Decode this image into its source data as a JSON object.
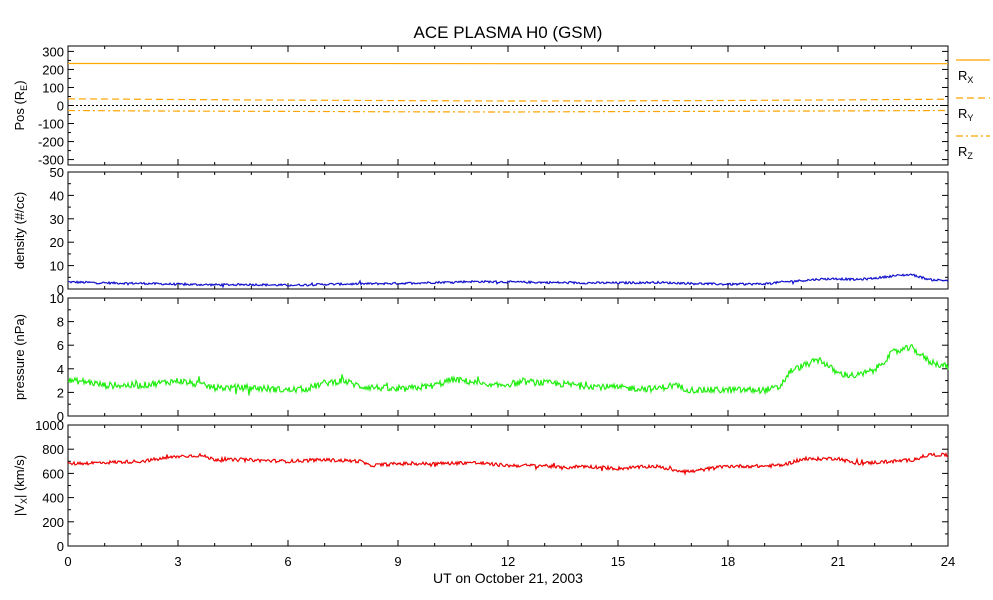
{
  "title": "ACE PLASMA H0 (GSM)",
  "xlabel": "UT on October 21, 2003",
  "x_ticks": [
    "0",
    "3",
    "6",
    "9",
    "12",
    "15",
    "18",
    "21",
    "24"
  ],
  "chart_data": [
    {
      "type": "line",
      "panel": "position",
      "ylabel": "Pos (R",
      "ylabel_sub": "E",
      "ylabel_end": ")",
      "ylim": [
        -330,
        330
      ],
      "yticks": [
        "300",
        "200",
        "100",
        "0",
        "-100",
        "-200",
        "-300"
      ],
      "ytick_values": [
        300,
        200,
        100,
        0,
        -100,
        -200,
        -300
      ],
      "zero_line": true,
      "legend_position": "right",
      "legend": [
        {
          "label": "R",
          "sub": "X",
          "style": "solid"
        },
        {
          "label": "R",
          "sub": "Y",
          "style": "dashed"
        },
        {
          "label": "R",
          "sub": "Z",
          "style": "dashdot"
        }
      ],
      "series": [
        {
          "name": "R_X",
          "color": "#ffa500",
          "dash": "",
          "x": [
            0,
            6,
            12,
            18,
            24
          ],
          "values": [
            233,
            233,
            232,
            232,
            232
          ]
        },
        {
          "name": "R_Y",
          "color": "#ffa500",
          "dash": "7,4",
          "x": [
            0,
            3,
            6,
            9,
            12,
            15,
            18,
            21,
            24
          ],
          "values": [
            37,
            33,
            30,
            27,
            25,
            26,
            28,
            31,
            35
          ]
        },
        {
          "name": "R_Z",
          "color": "#ffa500",
          "dash": "7,3,2,3",
          "x": [
            0,
            3,
            6,
            9,
            12,
            15,
            18,
            21,
            24
          ],
          "values": [
            -28,
            -31,
            -33,
            -35,
            -36,
            -34,
            -32,
            -30,
            -28
          ]
        }
      ]
    },
    {
      "type": "line",
      "panel": "density",
      "ylabel": "density (#/cc)",
      "ylim": [
        0,
        50
      ],
      "yticks": [
        "50",
        "40",
        "30",
        "20",
        "10",
        "0"
      ],
      "ytick_values": [
        50,
        40,
        30,
        20,
        10,
        0
      ],
      "series": [
        {
          "name": "density",
          "color": "#1010cc",
          "noise": 0.45,
          "x": [
            0,
            1,
            2,
            3,
            4,
            5,
            6,
            7,
            8,
            9,
            10,
            11,
            12,
            13,
            14,
            15,
            16,
            17,
            18,
            19,
            19.5,
            20,
            20.5,
            21,
            21.5,
            22,
            22.5,
            23,
            23.5,
            24
          ],
          "values": [
            3.0,
            2.6,
            2.4,
            2.0,
            1.8,
            1.9,
            1.6,
            2.0,
            2.2,
            2.4,
            2.8,
            3.2,
            3.0,
            2.8,
            2.6,
            2.6,
            2.8,
            2.4,
            2.0,
            2.2,
            3.0,
            3.6,
            4.2,
            4.4,
            4.0,
            4.6,
            5.6,
            6.2,
            4.0,
            3.6
          ]
        }
      ]
    },
    {
      "type": "line",
      "panel": "pressure",
      "ylabel": "pressure (nPa)",
      "ylim": [
        0,
        10
      ],
      "yticks": [
        "10",
        "8",
        "6",
        "4",
        "2",
        "0"
      ],
      "ytick_values": [
        10,
        8,
        6,
        4,
        2,
        0
      ],
      "series": [
        {
          "name": "pressure",
          "color": "#22ee11",
          "noise": 0.28,
          "x": [
            0,
            0.5,
            1,
            2,
            3,
            4,
            5,
            6,
            6.5,
            7,
            7.5,
            8,
            8.5,
            9,
            10,
            10.5,
            11,
            11.5,
            12,
            12.5,
            13,
            14,
            15,
            16,
            16.5,
            17,
            18,
            19,
            19.4,
            19.7,
            20,
            20.5,
            21,
            21.5,
            22,
            22.5,
            23,
            23.5,
            24
          ],
          "values": [
            3.0,
            2.9,
            2.6,
            2.6,
            3.0,
            2.4,
            2.4,
            2.2,
            2.3,
            2.8,
            3.0,
            2.5,
            2.4,
            2.2,
            2.6,
            3.1,
            2.9,
            2.5,
            2.7,
            2.9,
            2.8,
            2.6,
            2.4,
            2.3,
            2.6,
            2.2,
            2.2,
            2.2,
            2.4,
            3.8,
            4.2,
            4.8,
            3.6,
            3.4,
            3.9,
            5.4,
            5.8,
            4.6,
            4.2
          ]
        }
      ]
    },
    {
      "type": "line",
      "panel": "velocity",
      "ylabel": "|V",
      "ylabel_sub": "X",
      "ylabel_end": "| (km/s)",
      "ylim": [
        0,
        1000
      ],
      "yticks": [
        "1000",
        "800",
        "600",
        "400",
        "200",
        "0"
      ],
      "ytick_values": [
        1000,
        800,
        600,
        400,
        200,
        0
      ],
      "series": [
        {
          "name": "|Vx|",
          "color": "#ee0000",
          "noise": 14,
          "x": [
            0,
            1,
            2,
            3,
            3.6,
            4,
            5,
            6,
            7,
            8,
            8.2,
            9,
            10,
            11,
            12,
            13,
            13.5,
            14,
            15,
            16,
            16.5,
            17,
            17.5,
            18,
            19,
            19.5,
            20,
            21,
            21.5,
            22,
            23,
            23.5,
            24
          ],
          "values": [
            680,
            690,
            700,
            740,
            750,
            715,
            710,
            700,
            712,
            700,
            665,
            680,
            680,
            690,
            665,
            665,
            645,
            660,
            640,
            660,
            630,
            615,
            640,
            660,
            660,
            670,
            715,
            725,
            680,
            690,
            710,
            755,
            750
          ]
        }
      ]
    }
  ]
}
